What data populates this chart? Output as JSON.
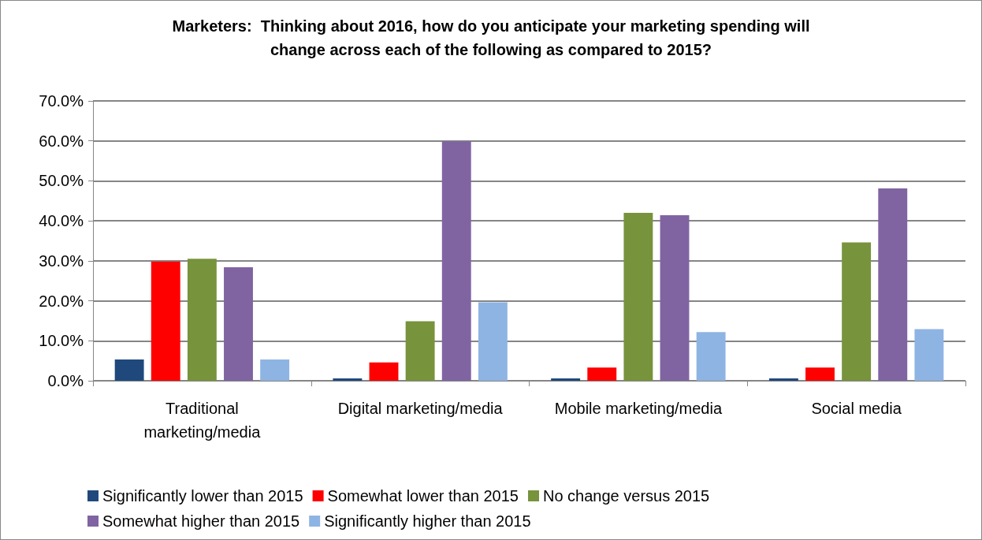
{
  "chart_data": {
    "type": "bar",
    "title": "Marketers:  Thinking about 2016, how do you anticipate your marketing spending will\nchange across each of the following as compared to 2015?",
    "categories": [
      "Traditional\nmarketing/media",
      "Digital marketing/media",
      "Mobile marketing/media",
      "Social media"
    ],
    "series": [
      {
        "name": "Significantly lower than 2015",
        "color": "#1f497d",
        "values": [
          5.3,
          0.6,
          0.6,
          0.6
        ]
      },
      {
        "name": "Somewhat lower than 2015",
        "color": "#ff0000",
        "values": [
          29.8,
          4.6,
          3.3,
          3.3
        ]
      },
      {
        "name": "No change versus 2015",
        "color": "#77933c",
        "values": [
          30.5,
          14.9,
          42.0,
          34.6
        ]
      },
      {
        "name": "Somewhat higher than 2015",
        "color": "#8064a2",
        "values": [
          28.4,
          59.9,
          41.4,
          48.1
        ]
      },
      {
        "name": "Significantly higher than 2015",
        "color": "#8eb4e3",
        "values": [
          5.3,
          19.6,
          12.2,
          12.9
        ]
      }
    ],
    "ylim": [
      0,
      70
    ],
    "yticks": [
      {
        "value": 0,
        "label": "0.0%"
      },
      {
        "value": 10,
        "label": "10.0%"
      },
      {
        "value": 20,
        "label": "20.0%"
      },
      {
        "value": 30,
        "label": "30.0%"
      },
      {
        "value": 40,
        "label": "40.0%"
      },
      {
        "value": 50,
        "label": "50.0%"
      },
      {
        "value": 60,
        "label": "60.0%"
      },
      {
        "value": 70,
        "label": "70.0%"
      }
    ],
    "grid": "y",
    "legend": "bottom"
  }
}
